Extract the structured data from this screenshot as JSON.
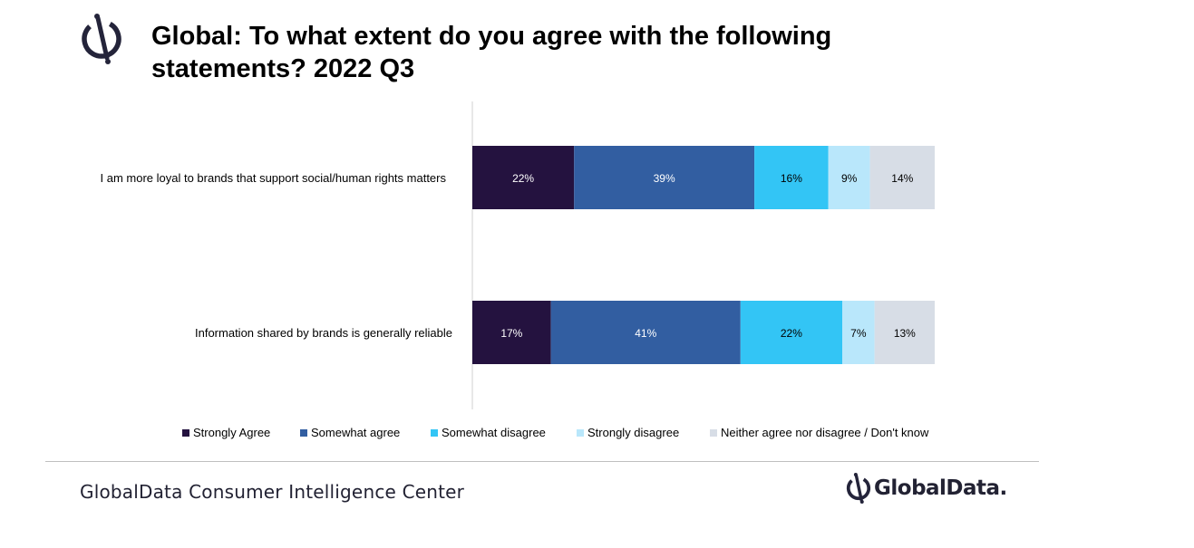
{
  "header": {
    "title": "Global: To what extent do you agree with the following statements? 2022 Q3",
    "logo_icon": "globaldata-logo-icon"
  },
  "chart_data": {
    "type": "bar",
    "orientation": "horizontal",
    "stacked": true,
    "title": "Global: To what extent do you agree with the following statements? 2022 Q3",
    "categories": [
      "I am more loyal to brands that support social/human rights matters",
      "Information shared by brands is generally reliable"
    ],
    "series": [
      {
        "name": "Strongly Agree",
        "color": "#24123f",
        "values": [
          22,
          17
        ],
        "labels": [
          "22%",
          "17%"
        ]
      },
      {
        "name": "Somewhat agree",
        "color": "#325ea1",
        "values": [
          39,
          41
        ],
        "labels": [
          "39%",
          "41%"
        ]
      },
      {
        "name": "Somewhat disagree",
        "color": "#33c5f5",
        "values": [
          16,
          22
        ],
        "labels": [
          "16%",
          "22%"
        ]
      },
      {
        "name": "Strongly disagree",
        "color": "#b9e7fb",
        "values": [
          9,
          7
        ],
        "labels": [
          "9%",
          "7%"
        ]
      },
      {
        "name": "Neither agree nor disagree / Don't know",
        "color": "#d7dde6",
        "values": [
          14,
          13
        ],
        "labels": [
          "14%",
          "13%"
        ]
      }
    ],
    "xlim": [
      0,
      100
    ],
    "grid": false,
    "legend_position": "bottom"
  },
  "footer": {
    "source": "GlobalData Consumer Intelligence Center",
    "brand_name": "GlobalData.",
    "brand_icon": "globaldata-logo-icon"
  }
}
